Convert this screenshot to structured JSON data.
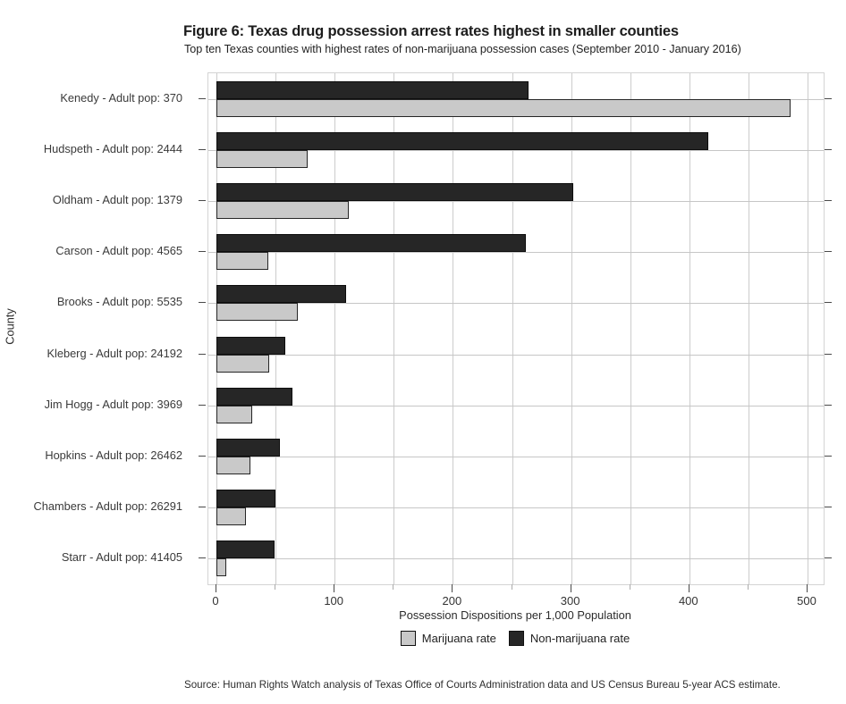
{
  "figure": {
    "title": "Figure 6: Texas drug possession arrest rates highest in smaller counties",
    "subtitle": "Top ten Texas counties with highest rates of non-marijuana possession cases (September 2010 - January 2016)",
    "source": "Source: Human Rights Watch analysis of Texas Office of Courts Administration data and US Census Bureau 5-year ACS estimate."
  },
  "chart_data": {
    "type": "bar",
    "orientation": "horizontal",
    "title": "Figure 6: Texas drug possession arrest rates highest in smaller counties",
    "subtitle": "Top ten Texas counties with highest rates of non-marijuana possession cases (September 2010 - January 2016)",
    "xlabel": "Possession Dispositions per 1,000 Population",
    "ylabel": "County",
    "xlim": [
      0,
      500
    ],
    "x_major_ticks": [
      0,
      100,
      200,
      300,
      400,
      500
    ],
    "x_minor_ticks": [
      50,
      150,
      250,
      350,
      450
    ],
    "grid": true,
    "legend_position": "bottom",
    "categories": [
      "Kenedy - Adult pop: 370",
      "Hudspeth - Adult pop: 2444",
      "Oldham - Adult pop: 1379",
      "Carson - Adult pop: 4565",
      "Brooks - Adult pop: 5535",
      "Kleberg - Adult pop: 24192",
      "Jim Hogg - Adult pop: 3969",
      "Hopkins - Adult pop: 26462",
      "Chambers - Adult pop: 26291",
      "Starr - Adult pop: 41405"
    ],
    "series": [
      {
        "name": "Marijuana rate",
        "color": "#c9c9c9",
        "values": [
          486,
          77,
          112,
          44,
          69,
          45,
          30,
          29,
          25,
          8
        ]
      },
      {
        "name": "Non-marijuana rate",
        "color": "#262626",
        "values": [
          264,
          416,
          302,
          262,
          110,
          58,
          64,
          54,
          50,
          49
        ]
      }
    ]
  },
  "colors": {
    "bar_marijuana": "#c9c9c9",
    "bar_non_marijuana": "#262626",
    "gridline": "#cccccc",
    "text": "#1c1c1c",
    "background": "#ffffff"
  }
}
